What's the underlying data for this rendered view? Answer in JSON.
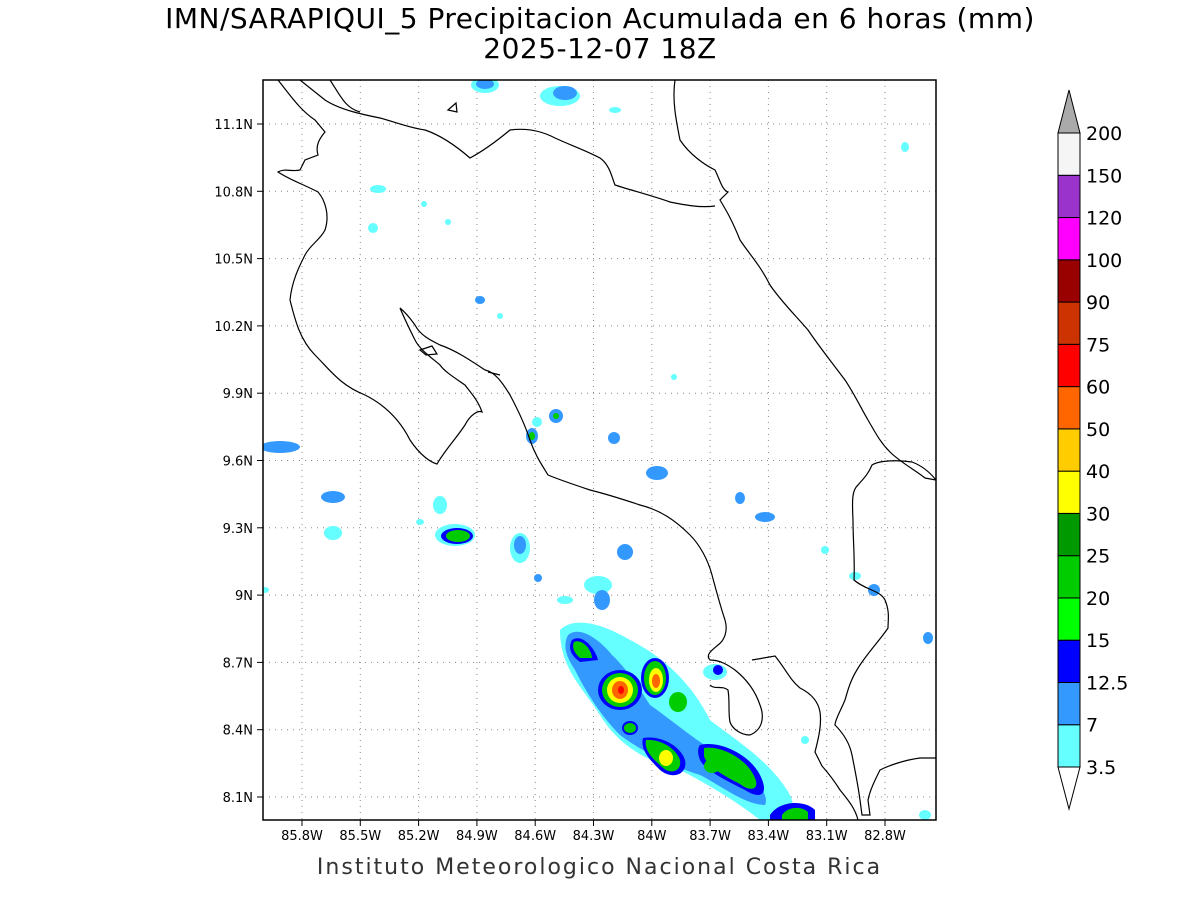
{
  "title_line1": "IMN/SARAPIQUI_5 Precipitacion Acumulada en 6 horas (mm)",
  "title_line2": "2025-12-07 18Z",
  "credit": "Instituto Meteorologico Nacional Costa Rica",
  "axes": {
    "lon_ticks": [
      "85.8W",
      "85.5W",
      "85.2W",
      "84.9W",
      "84.6W",
      "84.3W",
      "84W",
      "83.7W",
      "83.4W",
      "83.1W",
      "82.8W"
    ],
    "lat_ticks": [
      "11.1N",
      "10.8N",
      "10.5N",
      "10.2N",
      "9.9N",
      "9.6N",
      "9.3N",
      "9N",
      "8.7N",
      "8.4N",
      "8.1N"
    ],
    "grid": "dotted"
  },
  "colorbar": {
    "levels": [
      "3.5",
      "7",
      "12.5",
      "15",
      "20",
      "25",
      "30",
      "40",
      "50",
      "60",
      "75",
      "90",
      "100",
      "120",
      "150",
      "200"
    ],
    "colors": [
      "#66ffff",
      "#3399ff",
      "#0000ff",
      "#00ff00",
      "#00cc00",
      "#009900",
      "#ffff00",
      "#ffcc00",
      "#ff6600",
      "#ff0000",
      "#cc3300",
      "#990000",
      "#ff00ff",
      "#9933cc",
      "#f5f5f5",
      "#aaaaaa"
    ]
  }
}
